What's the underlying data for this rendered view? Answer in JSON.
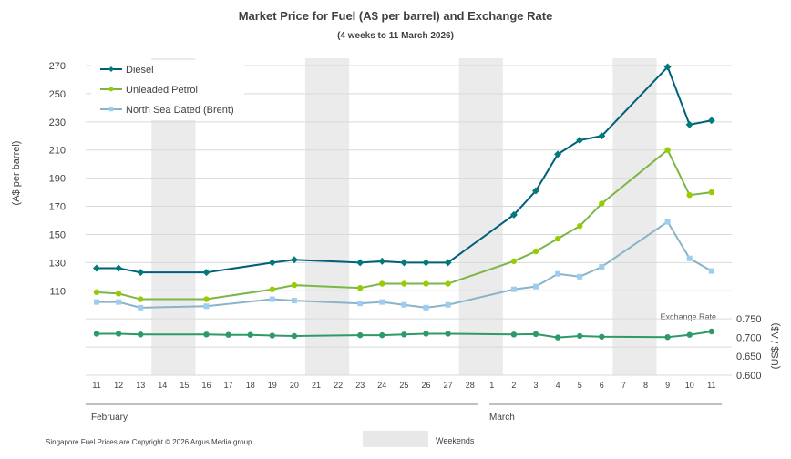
{
  "chart_data": {
    "type": "line",
    "title": "Market Price for Fuel (A$ per barrel) and Exchange Rate",
    "subtitle": "(4 weeks to 11 March 2026)",
    "ylabel": "(A$ per barrel)",
    "y2label": "(US$ / A$)",
    "y2title": "Exchange Rate",
    "ylim": [
      50,
      270
    ],
    "yticks": [
      110,
      130,
      150,
      170,
      190,
      210,
      230,
      250,
      270
    ],
    "y2ticks": [
      "0.600",
      "0.650",
      "0.700",
      "0.750"
    ],
    "x": [
      "11",
      "12",
      "13",
      "14",
      "15",
      "16",
      "17",
      "18",
      "19",
      "20",
      "21",
      "22",
      "23",
      "24",
      "25",
      "26",
      "27",
      "28",
      "1",
      "2",
      "3",
      "4",
      "5",
      "6",
      "7",
      "8",
      "9",
      "10",
      "11"
    ],
    "months": [
      "February",
      "March"
    ],
    "weekends": [
      [
        "14",
        "15"
      ],
      [
        "21",
        "22"
      ],
      [
        "28",
        "1"
      ],
      [
        "7",
        "8"
      ]
    ],
    "weekend_label": "Weekends",
    "series": [
      {
        "name": "Diesel",
        "color": "#005f7a",
        "marker": "diamond",
        "values": [
          126,
          126,
          123,
          null,
          null,
          123,
          null,
          null,
          130,
          132,
          null,
          null,
          130,
          131,
          130,
          130,
          130,
          null,
          null,
          164,
          181,
          207,
          217,
          220,
          null,
          null,
          269,
          228,
          231
        ]
      },
      {
        "name": "Unleaded Petrol",
        "color": "#7ab648",
        "marker": "circle",
        "values": [
          109,
          108,
          104,
          null,
          null,
          104,
          null,
          null,
          111,
          114,
          null,
          null,
          112,
          115,
          115,
          115,
          115,
          null,
          null,
          131,
          138,
          147,
          156,
          172,
          null,
          null,
          210,
          178,
          180
        ]
      },
      {
        "name": "North Sea Dated (Brent)",
        "color": "#8ab4c8",
        "marker": "square",
        "values": [
          102,
          102,
          98,
          null,
          null,
          99,
          null,
          null,
          104,
          103,
          null,
          null,
          101,
          102,
          100,
          98,
          100,
          null,
          null,
          111,
          113,
          122,
          120,
          127,
          null,
          null,
          159,
          133,
          124
        ]
      },
      {
        "name": "Exchange Rate",
        "color": "#2e9a6a",
        "marker": "circle",
        "axis": "right",
        "values": [
          0.71,
          0.71,
          0.708,
          null,
          null,
          0.708,
          0.707,
          0.707,
          0.705,
          0.704,
          null,
          null,
          0.706,
          0.706,
          0.708,
          0.71,
          0.71,
          null,
          null,
          0.708,
          0.709,
          0.7,
          0.704,
          0.702,
          null,
          null,
          0.701,
          0.707,
          0.716
        ]
      }
    ],
    "legend": "top-left",
    "grid": true
  },
  "footer": "Singapore Fuel Prices are Copyright © 2026 Argus Media group."
}
